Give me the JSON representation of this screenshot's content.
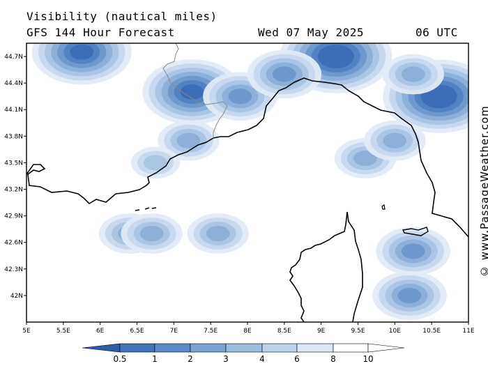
{
  "header": {
    "variable": "Visibility (nautical miles)",
    "model": "GFS 144 Hour Forecast",
    "date": "Wed 07 May 2025",
    "time": "06 UTC"
  },
  "credit": "© www.PassageWeather.com",
  "map": {
    "lon_range": [
      5,
      11
    ],
    "lat_range": [
      41.7,
      44.85
    ],
    "x_ticks": [
      "5E",
      "5.5E",
      "6E",
      "6.5E",
      "7E",
      "7.5E",
      "8E",
      "8.5E",
      "9E",
      "9.5E",
      "10E",
      "10.5E",
      "11E"
    ],
    "x_tick_values": [
      5,
      5.5,
      6,
      6.5,
      7,
      7.5,
      8,
      8.5,
      9,
      9.5,
      10,
      10.5,
      11
    ],
    "y_ticks": [
      "44.7N",
      "44.4N",
      "44.1N",
      "43.8N",
      "43.5N",
      "43.2N",
      "42.9N",
      "42.6N",
      "42.3N",
      "42N"
    ],
    "y_tick_values": [
      44.7,
      44.4,
      44.1,
      43.8,
      43.5,
      43.2,
      42.9,
      42.6,
      42.3,
      42.0
    ]
  },
  "colorbar": {
    "labels": [
      "0.5",
      "1",
      "2",
      "3",
      "4",
      "6",
      "8",
      "10"
    ],
    "colors": [
      "#3a6db5",
      "#4f82c2",
      "#6b98ce",
      "#8aafd9",
      "#a9c5e4",
      "#c6d8ee",
      "#e1ebf6",
      "#ffffff"
    ]
  },
  "fields": [
    {
      "name": "ligurian-coast-north",
      "lon": 5.75,
      "lat": 44.75,
      "level": 1
    },
    {
      "name": "alps-blob",
      "lon": 7.25,
      "lat": 44.3,
      "level": 1
    },
    {
      "name": "alps-east",
      "lon": 7.9,
      "lat": 44.25,
      "level": 3
    },
    {
      "name": "po-blob",
      "lon": 9.2,
      "lat": 44.7,
      "level": 0.5
    },
    {
      "name": "po-small",
      "lon": 8.5,
      "lat": 44.5,
      "level": 3
    },
    {
      "name": "adriatic-east",
      "lon": 10.6,
      "lat": 44.25,
      "level": 0.5
    },
    {
      "name": "adriatic-north",
      "lon": 10.25,
      "lat": 44.5,
      "level": 4
    },
    {
      "name": "tuscany-west",
      "lon": 9.6,
      "lat": 43.55,
      "level": 4
    },
    {
      "name": "tuscany-east",
      "lon": 10.0,
      "lat": 43.75,
      "level": 4
    },
    {
      "name": "riviera",
      "lon": 7.2,
      "lat": 43.75,
      "level": 4
    },
    {
      "name": "nice",
      "lon": 6.75,
      "lat": 43.5,
      "level": 6
    },
    {
      "name": "sea-west-1",
      "lon": 6.4,
      "lat": 42.7,
      "level": 4
    },
    {
      "name": "sea-west-2",
      "lon": 6.7,
      "lat": 42.7,
      "level": 4
    },
    {
      "name": "sea-mid",
      "lon": 7.6,
      "lat": 42.7,
      "level": 4
    },
    {
      "name": "elba-south",
      "lon": 10.25,
      "lat": 42.5,
      "level": 3
    },
    {
      "name": "elba-south-2",
      "lon": 10.2,
      "lat": 42.0,
      "level": 3
    }
  ]
}
